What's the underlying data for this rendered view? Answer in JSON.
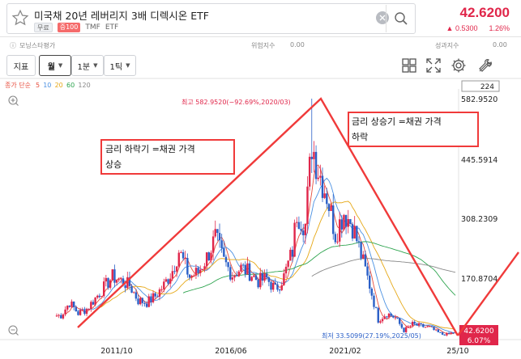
{
  "header": {
    "title": "미국채 20년 레버리지 3배 디렉시온 ETF",
    "tag_free": "무료",
    "tag_margin": "증100",
    "ticker": "TMF",
    "asset_type": "ETF",
    "price": "42.6200",
    "change_abs": "▲ 0.5300",
    "change_pct": "1.26%"
  },
  "indicators": {
    "morningstar_label": "모닝스타평가",
    "risk_label": "위험지수",
    "risk_value": "0.00",
    "perf_label": "성과지수",
    "perf_value": "0.00"
  },
  "toolbar": {
    "indicator_label": "지표",
    "period_label": "월",
    "min_label": "1분",
    "tick_label": "1틱"
  },
  "chart": {
    "ma_title": "종가 단순",
    "ma_periods": [
      "5",
      "10",
      "20",
      "60",
      "120"
    ],
    "ma_colors": [
      "#e74c3c",
      "#4a90e2",
      "#e6a817",
      "#2ea44f",
      "#888888"
    ],
    "count_box": "224",
    "high_label": "최고 582.9520(−92.69%,2020/03)",
    "low_label": "최저 33.5099(27.19%,2025/05)",
    "current_price": "42.6200",
    "current_pct": "6.07%",
    "y_ticks": [
      "582.9520",
      "445.5914",
      "308.2309",
      "170.8704"
    ],
    "x_ticks": [
      "2011/10",
      "2016/06",
      "2021/02",
      "25/10"
    ],
    "annotation_1": [
      "금리 하락기 =채권 가격",
      "상승"
    ],
    "annotation_2": [
      "금리 상승기 =채권 가격",
      "하락"
    ]
  },
  "chart_data": {
    "type": "candlestick",
    "title": "미국채 20년 레버리지 3배 디렉시온 ETF",
    "period": "monthly",
    "x_ticks": [
      "2011/10",
      "2016/06",
      "2021/02",
      "25/10"
    ],
    "y_ticks": [
      582.952,
      445.5914,
      308.2309,
      170.8704
    ],
    "ylim": [
      33.5,
      582.952
    ],
    "high": {
      "value": 582.952,
      "date": "2020/03"
    },
    "low": {
      "value": 33.5099,
      "date": "2025/05"
    },
    "last": 42.62,
    "moving_averages": [
      5,
      10,
      20,
      60,
      120
    ],
    "close_series": [
      [
        "2010/06",
        80
      ],
      [
        "2010/10",
        110
      ],
      [
        "2011/02",
        85
      ],
      [
        "2011/06",
        95
      ],
      [
        "2011/10",
        120
      ],
      [
        "2012/02",
        145
      ],
      [
        "2012/06",
        170
      ],
      [
        "2012/10",
        160
      ],
      [
        "2013/02",
        150
      ],
      [
        "2013/06",
        115
      ],
      [
        "2013/10",
        110
      ],
      [
        "2014/02",
        125
      ],
      [
        "2014/06",
        150
      ],
      [
        "2014/10",
        185
      ],
      [
        "2015/01",
        230
      ],
      [
        "2015/06",
        170
      ],
      [
        "2015/10",
        180
      ],
      [
        "2016/02",
        215
      ],
      [
        "2016/06",
        260
      ],
      [
        "2016/10",
        205
      ],
      [
        "2017/02",
        175
      ],
      [
        "2017/06",
        190
      ],
      [
        "2017/10",
        180
      ],
      [
        "2018/02",
        160
      ],
      [
        "2018/06",
        165
      ],
      [
        "2018/10",
        140
      ],
      [
        "2019/02",
        170
      ],
      [
        "2019/06",
        230
      ],
      [
        "2019/08",
        320
      ],
      [
        "2019/12",
        290
      ],
      [
        "2020/03",
        480
      ],
      [
        "2020/06",
        420
      ],
      [
        "2020/10",
        360
      ],
      [
        "2021/02",
        270
      ],
      [
        "2021/06",
        320
      ],
      [
        "2021/10",
        290
      ],
      [
        "2022/02",
        220
      ],
      [
        "2022/06",
        150
      ],
      [
        "2022/10",
        70
      ],
      [
        "2023/02",
        85
      ],
      [
        "2023/06",
        75
      ],
      [
        "2023/10",
        45
      ],
      [
        "2024/02",
        60
      ],
      [
        "2024/06",
        55
      ],
      [
        "2024/10",
        52
      ],
      [
        "2025/02",
        40
      ],
      [
        "2025/05",
        34
      ],
      [
        "2025/10",
        42.62
      ]
    ]
  }
}
